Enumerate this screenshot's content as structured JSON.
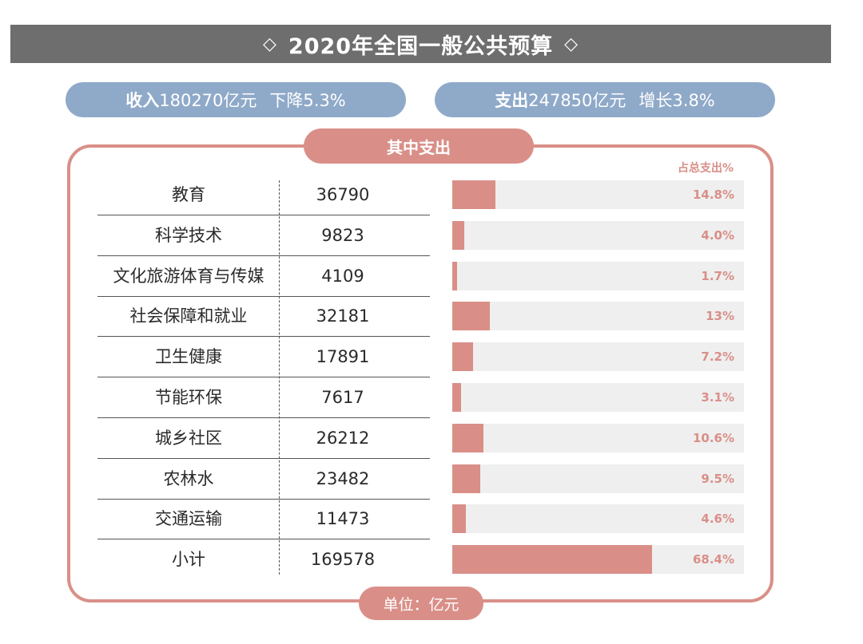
{
  "title": "2020年全国一般公共预算",
  "title_decor": "◇",
  "income": {
    "label": "收入",
    "amount": "180270亿元",
    "change": "下降5.3%"
  },
  "expense": {
    "label": "支出",
    "amount": "247850亿元",
    "change": "增长3.8%"
  },
  "section_title": "其中支出",
  "pct_header": "占总支出%",
  "unit": "单位：亿元",
  "colors": {
    "title_bg": "#6e6e6e",
    "pill": "#8fa9c9",
    "accent": "#d98f88",
    "track": "#efefef"
  },
  "chart_data": {
    "type": "bar",
    "orientation": "horizontal",
    "categories": [
      "教育",
      "科学技术",
      "文化旅游体育与传媒",
      "社会保障和就业",
      "卫生健康",
      "节能环保",
      "城乡社区",
      "农林水",
      "交通运输",
      "小计"
    ],
    "values": [
      36790,
      9823,
      4109,
      32181,
      17891,
      7617,
      26212,
      23482,
      11473,
      169578
    ],
    "value_labels": [
      "36790",
      "9823",
      "4109",
      "32181",
      "17891",
      "7617",
      "26212",
      "23482",
      "11473",
      "169578"
    ],
    "percent_of_total": [
      14.8,
      4.0,
      1.7,
      13,
      7.2,
      3.1,
      10.6,
      9.5,
      4.6,
      68.4
    ],
    "percent_labels": [
      "14.8%",
      "4.0%",
      "1.7%",
      "13%",
      "7.2%",
      "3.1%",
      "10.6%",
      "9.5%",
      "4.6%",
      "68.4%"
    ],
    "xlim": [
      0,
      100
    ],
    "grid": false
  }
}
